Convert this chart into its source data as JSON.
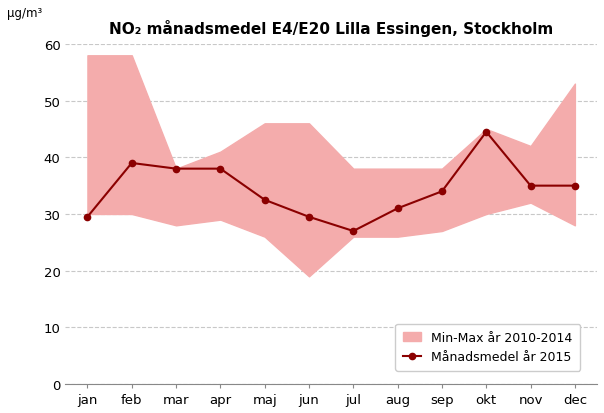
{
  "title": "NO₂ månadsmedel E4/E20 Lilla Essingen, Stockholm",
  "ylabel": "μg/m³",
  "months": [
    "jan",
    "feb",
    "mar",
    "apr",
    "maj",
    "jun",
    "jul",
    "aug",
    "sep",
    "okt",
    "nov",
    "dec"
  ],
  "min_values": [
    30,
    30,
    28,
    29,
    26,
    19,
    26,
    26,
    27,
    30,
    32,
    28
  ],
  "max_values": [
    58,
    58,
    38,
    41,
    46,
    46,
    38,
    38,
    38,
    45,
    42,
    53
  ],
  "line_2015": [
    29.5,
    39,
    38,
    38,
    32.5,
    29.5,
    27,
    31,
    34,
    44.5,
    35,
    35
  ],
  "fill_color": "#F4ACAC",
  "line_color": "#8B0000",
  "ylim": [
    0,
    60
  ],
  "yticks": [
    0,
    10,
    20,
    30,
    40,
    50,
    60
  ],
  "legend_fill_label": "Min-Max år 2010-2014",
  "legend_line_label": "Månadsmedel år 2015",
  "background_color": "#ffffff",
  "grid_color": "#c8c8c8"
}
